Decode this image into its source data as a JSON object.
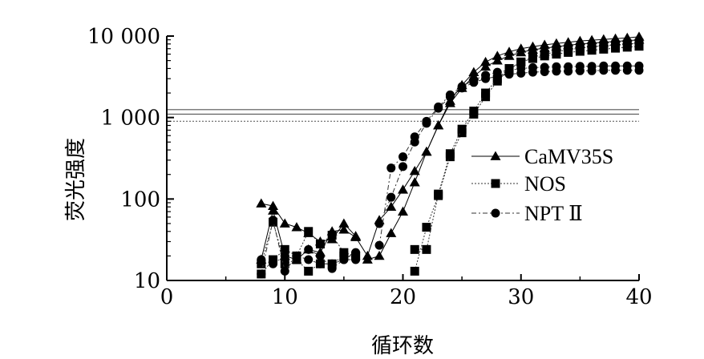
{
  "chart_data": {
    "type": "line",
    "title": "",
    "xlabel": "循环数",
    "ylabel": "荧光强度",
    "xlim": [
      0,
      40
    ],
    "ylim": [
      10,
      10000
    ],
    "yscale": "log",
    "grid": false,
    "legend_position": "right",
    "x_ticks": [
      0,
      10,
      20,
      30,
      40
    ],
    "x_tick_labels": [
      "0",
      "10",
      "20",
      "30",
      "40"
    ],
    "y_ticks": [
      10,
      100,
      1000,
      10000
    ],
    "y_tick_labels": [
      "10",
      "100",
      "1 000",
      "10 000"
    ],
    "thresholds": [
      {
        "value": 1250,
        "style": "solid"
      },
      {
        "value": 1100,
        "style": "solid"
      },
      {
        "value": 900,
        "style": "dotted"
      }
    ],
    "series": [
      {
        "name": "CaMV35S",
        "marker": "triangle",
        "line_style": "solid",
        "replicates": [
          [
            [
              8,
              88
            ],
            [
              9,
              82
            ],
            [
              10,
              50
            ],
            [
              11,
              45
            ],
            [
              12,
              38
            ],
            [
              13,
              30
            ],
            [
              14,
              32
            ],
            [
              15,
              50
            ],
            [
              16,
              35
            ]
          ],
          [
            [
              8,
              18
            ],
            [
              9,
              72
            ],
            [
              10,
              20
            ],
            [
              11,
              18
            ],
            [
              12,
              24
            ],
            [
              13,
              22
            ],
            [
              14,
              40
            ],
            [
              15,
              42
            ],
            [
              16,
              34
            ],
            [
              17,
              20
            ],
            [
              18,
              55
            ],
            [
              19,
              80
            ],
            [
              20,
              130
            ],
            [
              21,
              220
            ],
            [
              22,
              380
            ],
            [
              23,
              800
            ],
            [
              24,
              1600
            ],
            [
              25,
              2500
            ],
            [
              26,
              3600
            ],
            [
              27,
              4800
            ],
            [
              28,
              5700
            ],
            [
              29,
              6400
            ],
            [
              30,
              7000
            ],
            [
              31,
              7400
            ],
            [
              32,
              7800
            ],
            [
              33,
              8100
            ],
            [
              34,
              8400
            ],
            [
              35,
              8700
            ],
            [
              36,
              8900
            ],
            [
              37,
              9100
            ],
            [
              38,
              9300
            ],
            [
              39,
              9500
            ],
            [
              40,
              9800
            ]
          ],
          [
            [
              17,
              18
            ],
            [
              18,
              20
            ],
            [
              19,
              38
            ],
            [
              20,
              70
            ],
            [
              21,
              160
            ],
            [
              22,
              380
            ],
            [
              23,
              800
            ],
            [
              24,
              1500
            ],
            [
              25,
              2300
            ],
            [
              26,
              3200
            ],
            [
              27,
              4200
            ],
            [
              28,
              5000
            ],
            [
              29,
              5700
            ],
            [
              30,
              6300
            ],
            [
              31,
              6800
            ],
            [
              32,
              7100
            ],
            [
              33,
              7400
            ],
            [
              34,
              7700
            ],
            [
              35,
              8000
            ],
            [
              36,
              8200
            ],
            [
              37,
              8400
            ],
            [
              38,
              8600
            ],
            [
              39,
              8800
            ],
            [
              40,
              9000
            ]
          ]
        ]
      },
      {
        "name": "NOS",
        "marker": "square",
        "line_style": "dotted",
        "replicates": [
          [
            [
              8,
              12
            ],
            [
              9,
              18
            ],
            [
              10,
              24
            ],
            [
              11,
              20
            ],
            [
              12,
              40
            ],
            [
              13,
              28
            ],
            [
              14,
              36
            ],
            [
              15,
              22
            ],
            [
              16,
              20
            ]
          ],
          [
            [
              8,
              16
            ],
            [
              9,
              52
            ],
            [
              10,
              16
            ],
            [
              11,
              18
            ],
            [
              12,
              13
            ],
            [
              13,
              16
            ],
            [
              14,
              16
            ],
            [
              15,
              20
            ],
            [
              16,
              20
            ]
          ],
          [
            [
              21,
              13
            ],
            [
              22,
              45
            ],
            [
              23,
              110
            ],
            [
              24,
              330
            ],
            [
              25,
              650
            ],
            [
              26,
              1100
            ],
            [
              27,
              1800
            ],
            [
              28,
              2800
            ],
            [
              29,
              3900
            ],
            [
              30,
              4800
            ],
            [
              31,
              5500
            ],
            [
              32,
              6000
            ],
            [
              33,
              6400
            ],
            [
              34,
              6800
            ],
            [
              35,
              7100
            ],
            [
              36,
              7400
            ],
            [
              37,
              7600
            ],
            [
              38,
              7800
            ],
            [
              39,
              8000
            ],
            [
              40,
              8200
            ]
          ],
          [
            [
              21,
              24
            ],
            [
              22,
              24
            ],
            [
              23,
              115
            ],
            [
              24,
              360
            ],
            [
              25,
              720
            ],
            [
              26,
              1200
            ],
            [
              27,
              2000
            ],
            [
              28,
              3000
            ],
            [
              29,
              4000
            ],
            [
              30,
              4800
            ],
            [
              31,
              5300
            ],
            [
              32,
              5700
            ],
            [
              33,
              6000
            ],
            [
              34,
              6300
            ],
            [
              35,
              6500
            ],
            [
              36,
              6700
            ],
            [
              37,
              6900
            ],
            [
              38,
              7100
            ],
            [
              39,
              7300
            ],
            [
              40,
              7500
            ]
          ]
        ]
      },
      {
        "name": "NPT Ⅱ",
        "marker": "circle",
        "line_style": "dash-dot",
        "replicates": [
          [
            [
              8,
              12
            ],
            [
              9,
              55
            ],
            [
              10,
              13
            ],
            [
              11,
              20
            ],
            [
              12,
              24
            ],
            [
              13,
              20
            ],
            [
              14,
              14
            ],
            [
              15,
              18
            ],
            [
              16,
              22
            ]
          ],
          [
            [
              8,
              18
            ],
            [
              9,
              16
            ],
            [
              10,
              20
            ],
            [
              11,
              20
            ],
            [
              12,
              18
            ],
            [
              13,
              16
            ],
            [
              14,
              16
            ],
            [
              15,
              18
            ],
            [
              16,
              18
            ]
          ],
          [
            [
              18,
              50
            ],
            [
              19,
              105
            ],
            [
              20,
              250
            ],
            [
              21,
              500
            ],
            [
              22,
              850
            ],
            [
              23,
              1300
            ],
            [
              24,
              1800
            ],
            [
              25,
              2300
            ],
            [
              26,
              2700
            ],
            [
              27,
              3000
            ],
            [
              28,
              3200
            ],
            [
              29,
              3400
            ],
            [
              30,
              3500
            ],
            [
              31,
              3600
            ],
            [
              32,
              3650
            ],
            [
              33,
              3700
            ],
            [
              34,
              3700
            ],
            [
              35,
              3750
            ],
            [
              36,
              3750
            ],
            [
              37,
              3800
            ],
            [
              38,
              3800
            ],
            [
              39,
              3800
            ],
            [
              40,
              3800
            ]
          ],
          [
            [
              18,
              27
            ],
            [
              19,
              240
            ],
            [
              20,
              330
            ],
            [
              21,
              580
            ],
            [
              22,
              900
            ],
            [
              23,
              1350
            ],
            [
              24,
              1900
            ],
            [
              25,
              2400
            ],
            [
              26,
              2900
            ],
            [
              27,
              3300
            ],
            [
              28,
              3600
            ],
            [
              29,
              3800
            ],
            [
              30,
              4000
            ],
            [
              31,
              4100
            ],
            [
              32,
              4150
            ],
            [
              33,
              4200
            ],
            [
              34,
              4200
            ],
            [
              35,
              4250
            ],
            [
              36,
              4250
            ],
            [
              37,
              4300
            ],
            [
              38,
              4300
            ],
            [
              39,
              4300
            ],
            [
              40,
              4300
            ]
          ]
        ]
      }
    ]
  }
}
